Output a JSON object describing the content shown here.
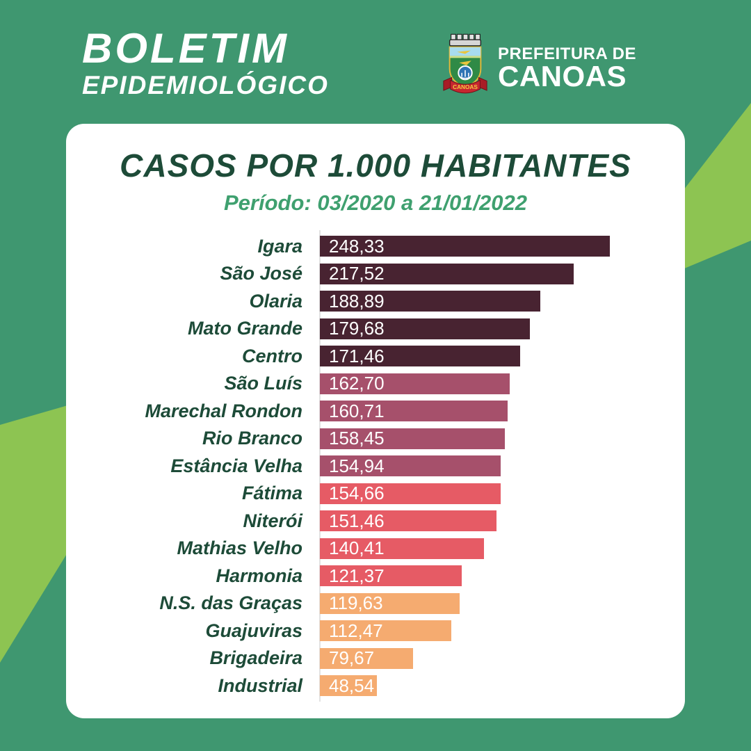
{
  "header": {
    "title_line1": "BOLETIM",
    "title_line2": "EPIDEMIOLÓGICO",
    "logo": {
      "icon": "canoas-coat-of-arms",
      "ribbon_text": "CANOAS",
      "org_line1": "PREFEITURA DE",
      "org_line2": "CANOAS"
    }
  },
  "card": {
    "title": "CASOS POR 1.000 HABITANTES",
    "subtitle": "Período: 03/2020 a 21/01/2022"
  },
  "chart_data": {
    "type": "bar",
    "orientation": "horizontal",
    "title": "CASOS POR 1.000 HABITANTES",
    "subtitle": "Período: 03/2020 a 21/01/2022",
    "categories": [
      "Igara",
      "São José",
      "Olaria",
      "Mato Grande",
      "Centro",
      "São Luís",
      "Marechal Rondon",
      "Rio Branco",
      "Estância Velha",
      "Fátima",
      "Niterói",
      "Mathias Velho",
      "Harmonia",
      "N.S. das Graças",
      "Guajuviras",
      "Brigadeira",
      "Industrial"
    ],
    "values": [
      248.33,
      217.52,
      188.89,
      179.68,
      171.46,
      162.7,
      160.71,
      158.45,
      154.94,
      154.66,
      151.46,
      140.41,
      121.37,
      119.63,
      112.47,
      79.67,
      48.54
    ],
    "value_labels": [
      "248,33",
      "217,52",
      "188,89",
      "179,68",
      "171,46",
      "162,70",
      "160,71",
      "158,45",
      "154,94",
      "154,66",
      "151,46",
      "140,41",
      "121,37",
      "119,63",
      "112,47",
      "79,67",
      "48,54"
    ],
    "bar_colors": [
      "#482331",
      "#482331",
      "#482331",
      "#482331",
      "#482331",
      "#A6506B",
      "#A6506B",
      "#A6506B",
      "#A6506B",
      "#E65B65",
      "#E65B65",
      "#E65B65",
      "#E65B65",
      "#F5AB70",
      "#F5AB70",
      "#F5AB70",
      "#F5AB70"
    ],
    "xlim": [
      0,
      248.33
    ],
    "grid": false,
    "legend": false
  },
  "colors": {
    "background": "#3F9770",
    "background_accent": "#8DC452",
    "card": "#FFFFFF",
    "title": "#1D4B38",
    "subtitle": "#3FA06F",
    "category_label": "#1D4B38",
    "value_label": "#FFFFFF",
    "axis_line": "#E2E2E2"
  }
}
